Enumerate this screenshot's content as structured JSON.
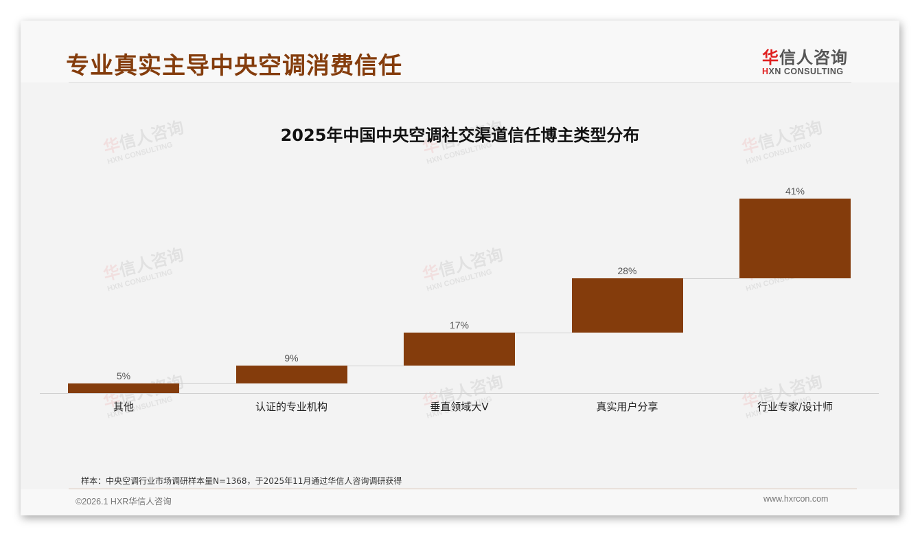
{
  "header": {
    "title": "专业真实主导中央空调消费信任",
    "logo_cn_first": "华",
    "logo_cn_rest": "信人咨询",
    "logo_en_first": "H",
    "logo_en_rest": "XN CONSULTING"
  },
  "watermark": {
    "cn_first": "华",
    "cn_rest": "信人咨询",
    "en": "HXN CONSULTING"
  },
  "chart_data": {
    "type": "bar",
    "subtype": "waterfall",
    "title": "2025年中国中央空调社交渠道信任博主类型分布",
    "categories": [
      "其他",
      "认证的专业机构",
      "垂直领域大V",
      "真实用户分享",
      "行业专家/设计师"
    ],
    "values": [
      5,
      9,
      17,
      28,
      41
    ],
    "value_labels": [
      "5%",
      "9%",
      "17%",
      "28%",
      "41%"
    ],
    "unit": "%",
    "xlabel": "",
    "ylabel": "",
    "ylim": [
      0,
      100
    ],
    "grid": false,
    "legend": null,
    "bar_color": "#843c0c"
  },
  "footer": {
    "note": "样本：中央空调行业市场调研样本量N=1368，于2025年11月通过华信人咨询调研获得",
    "copyright": "©2026.1 HXR华信人咨询",
    "website": "www.hxrcon.com"
  },
  "colors": {
    "accent": "#843c0c",
    "logo_red": "#e02020",
    "background": "#f3f3f3"
  }
}
